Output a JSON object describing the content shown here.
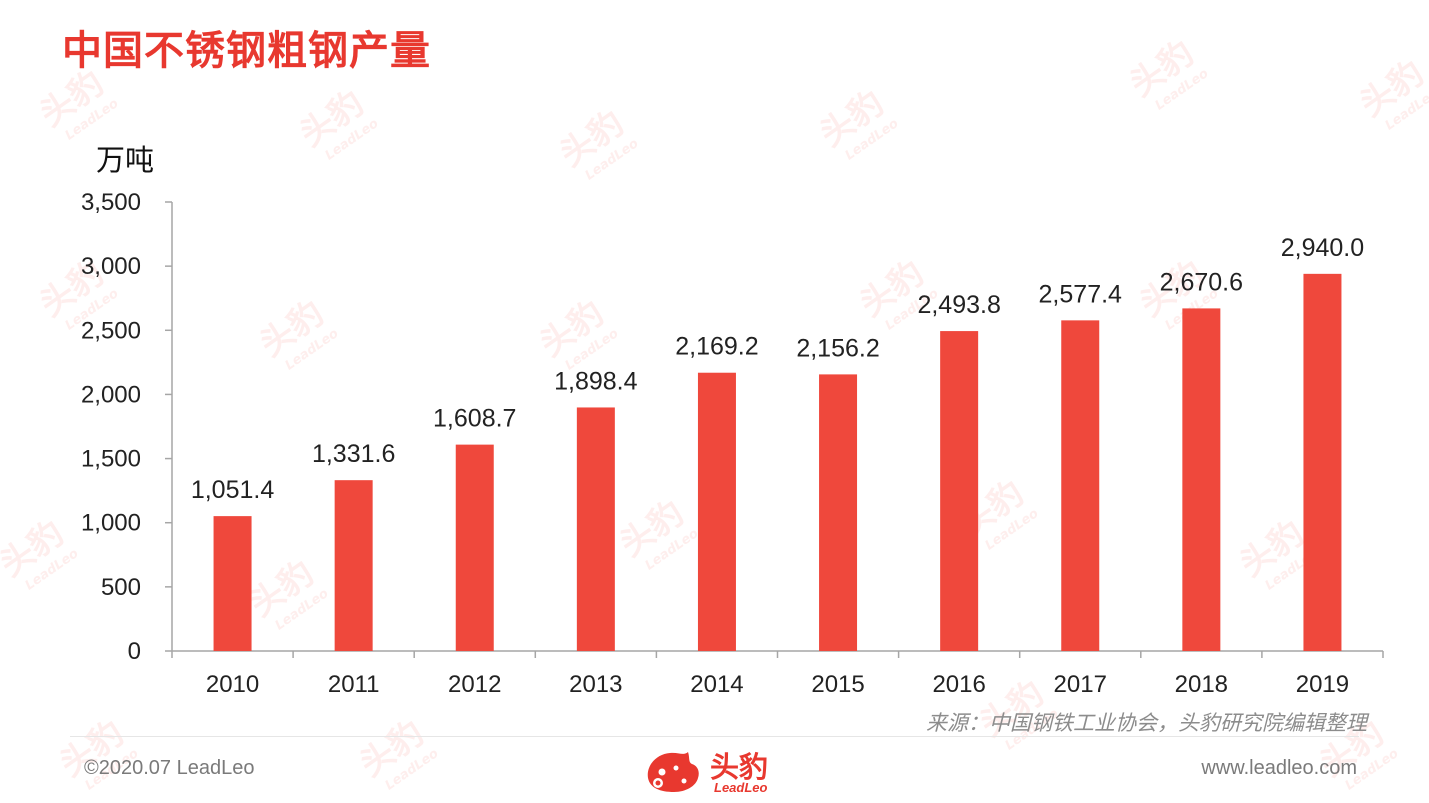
{
  "page": {
    "title": "中国不锈钢粗钢产量",
    "source_note": "来源：中国钢铁工业协会，头豹研究院编辑整理",
    "copyright": "©2020.07 LeadLeo",
    "website": "www.leadleo.com"
  },
  "logo": {
    "cn": "头豹",
    "en": "LeadLeo",
    "icon": "leopard-head-icon"
  },
  "watermark": {
    "cn": "头豹",
    "en": "LeadLeo"
  },
  "colors": {
    "bar": "#ef483c",
    "title": "#e8382f",
    "axis": "#a6a6a6"
  },
  "chart_data": {
    "type": "bar",
    "title": "",
    "xlabel": "",
    "ylabel": "万吨",
    "categories": [
      "2010",
      "2011",
      "2012",
      "2013",
      "2014",
      "2015",
      "2016",
      "2017",
      "2018",
      "2019"
    ],
    "values": [
      1051.4,
      1331.6,
      1608.7,
      1898.4,
      2169.2,
      2156.2,
      2493.8,
      2577.4,
      2670.6,
      2940.0
    ],
    "data_labels": [
      "1,051.4",
      "1,331.6",
      "1,608.7",
      "1,898.4",
      "2,169.2",
      "2,156.2",
      "2,493.8",
      "2,577.4",
      "2,670.6",
      "2,940.0"
    ],
    "ylim": [
      0,
      3500
    ],
    "yticks": [
      0,
      500,
      1000,
      1500,
      2000,
      2500,
      3000,
      3500
    ],
    "ytick_labels": [
      "0",
      "500",
      "1,000",
      "1,500",
      "2,000",
      "2,500",
      "3,000",
      "3,500"
    ],
    "grid": false,
    "legend": "none"
  }
}
